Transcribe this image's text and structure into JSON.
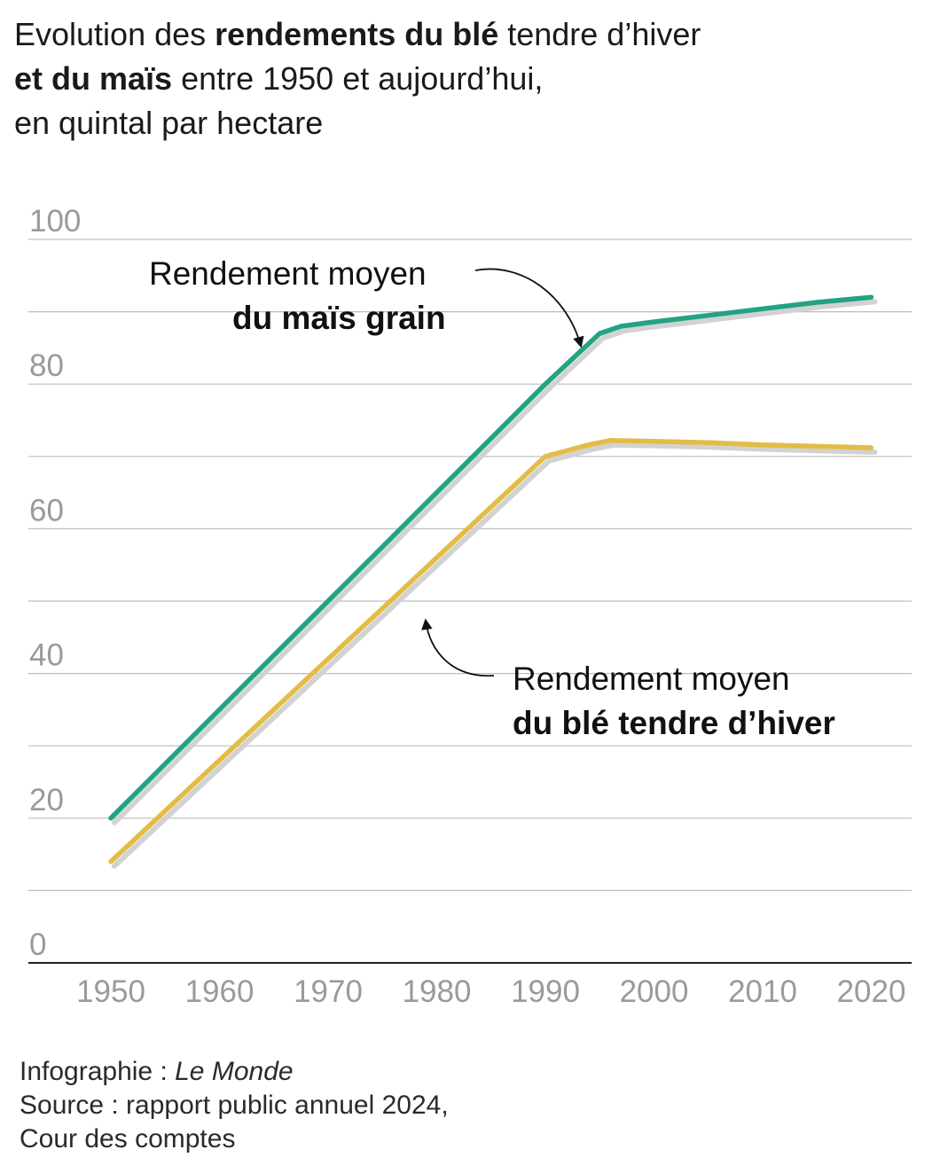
{
  "title": {
    "part1": "Evolution des ",
    "bold1": "rendements du blé",
    "part2": " tendre d’hiver",
    "bold2": "et du maïs",
    "part3": " entre 1950 et aujourd’hui,",
    "line3": "en quintal par hectare"
  },
  "annotations": {
    "mais_line1": "Rendement moyen",
    "mais_line2": "du maïs grain",
    "ble_line1": "Rendement moyen",
    "ble_line2": "du blé tendre d’hiver"
  },
  "footer": {
    "infographie_label": "Infographie : ",
    "infographie_name": "Le Monde",
    "source_line1": "Source : rapport public annuel 2024,",
    "source_line2": "Cour des comptes"
  },
  "colors": {
    "mais": "#22a383",
    "ble": "#e2bd45",
    "mais_highlight": "#9fd6c4",
    "ble_highlight": "#f4dfae",
    "shadow": "#d2d2d2",
    "grid": "#bdbdbd",
    "axis": "#222222",
    "tick_text": "#9a9a9a"
  },
  "chart_data": {
    "type": "line",
    "ylim": [
      0,
      100
    ],
    "xlim": [
      1945,
      2020
    ],
    "y_ticks": [
      0,
      20,
      40,
      60,
      80,
      100
    ],
    "y_gridlines": [
      10,
      20,
      30,
      40,
      50,
      60,
      70,
      80,
      90,
      100
    ],
    "x_ticks": [
      1950,
      1960,
      1970,
      1980,
      1990,
      2000,
      2010,
      2020
    ],
    "series": [
      {
        "name": "Rendement moyen du maïs grain",
        "key": "mais",
        "x": [
          1950,
          1955,
          1960,
          1965,
          1970,
          1975,
          1980,
          1985,
          1990,
          1995,
          1997,
          2000,
          2005,
          2010,
          2015,
          2020
        ],
        "y": [
          20,
          27.5,
          35,
          42.5,
          50,
          57.5,
          65,
          72.5,
          80,
          87,
          88,
          88.6,
          89.5,
          90.4,
          91.3,
          92
        ]
      },
      {
        "name": "Rendement moyen du blé tendre d’hiver",
        "key": "ble",
        "x": [
          1950,
          1955,
          1960,
          1965,
          1970,
          1975,
          1980,
          1985,
          1990,
          1994,
          1996,
          2000,
          2005,
          2010,
          2015,
          2020
        ],
        "y": [
          14,
          21,
          28,
          35,
          42,
          49,
          56,
          63,
          70,
          71.6,
          72.2,
          72.1,
          71.9,
          71.6,
          71.4,
          71.2
        ]
      }
    ]
  }
}
